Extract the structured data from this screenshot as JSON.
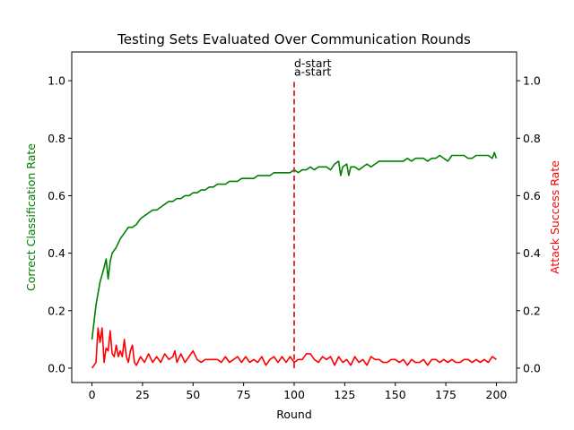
{
  "chart_data": {
    "type": "line",
    "title": "Testing Sets Evaluated Over Communication Rounds",
    "xlabel": "Round",
    "ylabel_left": "Correct Classification Rate",
    "ylabel_right": "Attack Success Rate",
    "xlim": [
      -10,
      210
    ],
    "ylim_left": [
      -0.05,
      1.1
    ],
    "ylim_right": [
      -0.05,
      1.1
    ],
    "xticks": [
      0,
      25,
      50,
      75,
      100,
      125,
      150,
      175,
      200
    ],
    "yticks_left": [
      0.0,
      0.2,
      0.4,
      0.6,
      0.8,
      1.0
    ],
    "yticks_right": [
      0.0,
      0.2,
      0.4,
      0.6,
      0.8,
      1.0
    ],
    "grid": false,
    "colors": {
      "left_axis": "#008000",
      "right_axis": "#ff0000",
      "vline": "#d62728"
    },
    "vline": {
      "x": 100,
      "ymin": 0.0,
      "ymax": 1.0,
      "style": "dashed"
    },
    "annotations": [
      {
        "text": "d-start",
        "x": 100,
        "y": 1.06
      },
      {
        "text": "a-start",
        "x": 100,
        "y": 1.03
      }
    ],
    "series": [
      {
        "axis": "left",
        "color": "#008000",
        "x": [
          0,
          2,
          4,
          6,
          7,
          8,
          9,
          10,
          12,
          14,
          16,
          18,
          20,
          22,
          24,
          26,
          28,
          30,
          32,
          34,
          36,
          38,
          40,
          42,
          44,
          46,
          48,
          50,
          52,
          54,
          56,
          58,
          60,
          62,
          64,
          66,
          68,
          70,
          72,
          74,
          76,
          78,
          80,
          82,
          84,
          86,
          88,
          90,
          92,
          94,
          96,
          98,
          100,
          102,
          104,
          106,
          108,
          110,
          112,
          114,
          116,
          118,
          120,
          122,
          123,
          124,
          126,
          127,
          128,
          130,
          132,
          134,
          136,
          138,
          140,
          142,
          144,
          146,
          148,
          150,
          152,
          154,
          156,
          158,
          160,
          162,
          164,
          166,
          168,
          170,
          172,
          174,
          176,
          178,
          180,
          182,
          184,
          186,
          188,
          190,
          192,
          194,
          196,
          198,
          199,
          200
        ],
        "y": [
          0.1,
          0.22,
          0.3,
          0.35,
          0.38,
          0.31,
          0.37,
          0.4,
          0.42,
          0.45,
          0.47,
          0.49,
          0.49,
          0.5,
          0.52,
          0.53,
          0.54,
          0.55,
          0.55,
          0.56,
          0.57,
          0.58,
          0.58,
          0.59,
          0.59,
          0.6,
          0.6,
          0.61,
          0.61,
          0.62,
          0.62,
          0.63,
          0.63,
          0.64,
          0.64,
          0.64,
          0.65,
          0.65,
          0.65,
          0.66,
          0.66,
          0.66,
          0.66,
          0.67,
          0.67,
          0.67,
          0.67,
          0.68,
          0.68,
          0.68,
          0.68,
          0.68,
          0.69,
          0.68,
          0.69,
          0.69,
          0.7,
          0.69,
          0.7,
          0.7,
          0.7,
          0.69,
          0.71,
          0.72,
          0.67,
          0.7,
          0.71,
          0.67,
          0.7,
          0.7,
          0.69,
          0.7,
          0.71,
          0.7,
          0.71,
          0.72,
          0.72,
          0.72,
          0.72,
          0.72,
          0.72,
          0.72,
          0.73,
          0.72,
          0.73,
          0.73,
          0.73,
          0.72,
          0.73,
          0.73,
          0.74,
          0.73,
          0.72,
          0.74,
          0.74,
          0.74,
          0.74,
          0.73,
          0.73,
          0.74,
          0.74,
          0.74,
          0.74,
          0.73,
          0.75,
          0.73
        ]
      },
      {
        "axis": "right",
        "color": "#ff0000",
        "x": [
          0,
          2,
          3,
          4,
          5,
          6,
          7,
          8,
          9,
          10,
          11,
          12,
          13,
          14,
          15,
          16,
          17,
          18,
          19,
          20,
          21,
          22,
          24,
          26,
          28,
          30,
          32,
          34,
          36,
          38,
          40,
          41,
          42,
          44,
          46,
          48,
          50,
          52,
          54,
          56,
          58,
          60,
          62,
          64,
          66,
          68,
          70,
          72,
          74,
          76,
          78,
          80,
          82,
          84,
          86,
          88,
          90,
          92,
          94,
          96,
          98,
          100,
          102,
          104,
          106,
          108,
          110,
          112,
          114,
          116,
          118,
          120,
          122,
          124,
          126,
          128,
          130,
          132,
          134,
          136,
          138,
          140,
          142,
          144,
          146,
          148,
          150,
          152,
          154,
          156,
          158,
          160,
          162,
          164,
          166,
          168,
          170,
          172,
          174,
          176,
          178,
          180,
          182,
          184,
          186,
          188,
          190,
          192,
          194,
          196,
          198,
          200
        ],
        "y": [
          0.0,
          0.02,
          0.14,
          0.09,
          0.14,
          0.02,
          0.07,
          0.06,
          0.13,
          0.05,
          0.04,
          0.08,
          0.04,
          0.06,
          0.04,
          0.1,
          0.04,
          0.02,
          0.06,
          0.08,
          0.02,
          0.01,
          0.04,
          0.02,
          0.05,
          0.02,
          0.04,
          0.02,
          0.05,
          0.03,
          0.04,
          0.06,
          0.02,
          0.05,
          0.02,
          0.04,
          0.06,
          0.03,
          0.02,
          0.03,
          0.03,
          0.03,
          0.03,
          0.02,
          0.04,
          0.02,
          0.03,
          0.04,
          0.02,
          0.04,
          0.02,
          0.03,
          0.02,
          0.04,
          0.01,
          0.03,
          0.04,
          0.02,
          0.04,
          0.02,
          0.04,
          0.02,
          0.03,
          0.03,
          0.05,
          0.05,
          0.03,
          0.02,
          0.04,
          0.03,
          0.04,
          0.01,
          0.04,
          0.02,
          0.03,
          0.01,
          0.04,
          0.02,
          0.03,
          0.01,
          0.04,
          0.03,
          0.03,
          0.02,
          0.02,
          0.03,
          0.03,
          0.02,
          0.03,
          0.01,
          0.03,
          0.02,
          0.02,
          0.03,
          0.01,
          0.03,
          0.03,
          0.02,
          0.03,
          0.02,
          0.03,
          0.02,
          0.02,
          0.03,
          0.03,
          0.02,
          0.03,
          0.02,
          0.03,
          0.02,
          0.04,
          0.03
        ]
      }
    ]
  }
}
